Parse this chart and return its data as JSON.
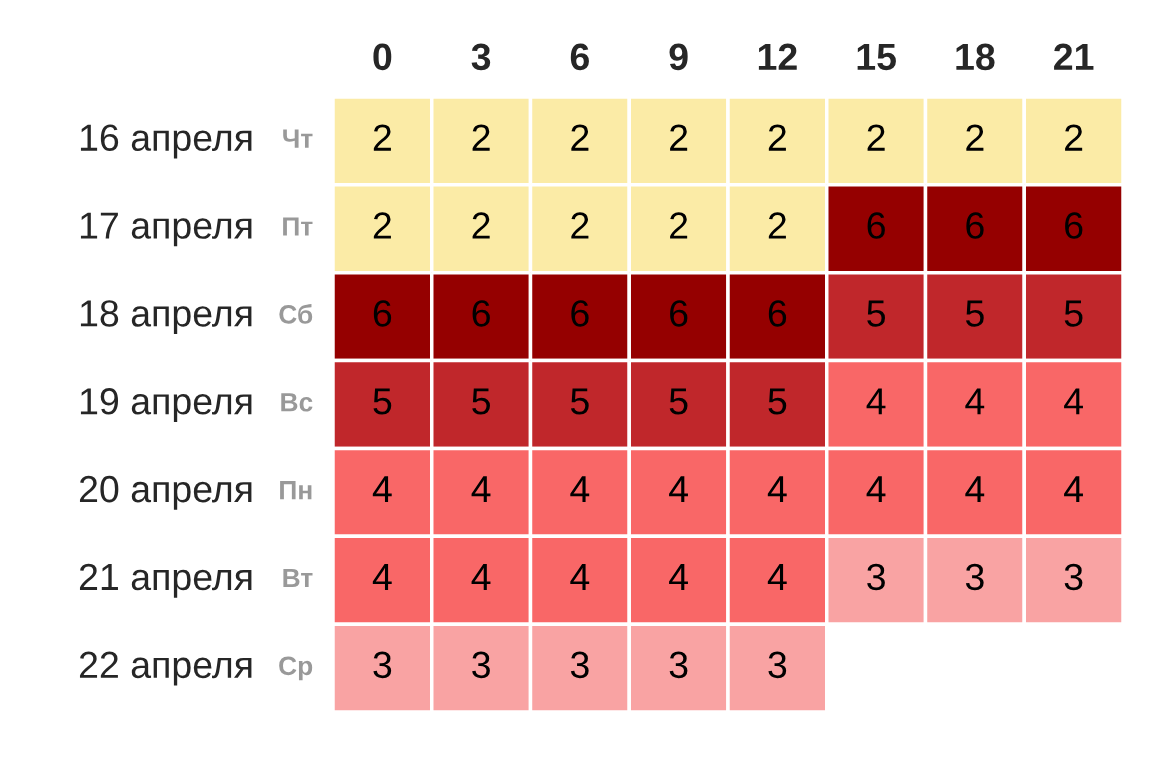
{
  "chart_data": {
    "type": "heatmap",
    "categories": [
      "0",
      "3",
      "6",
      "9",
      "12",
      "15",
      "18",
      "21"
    ],
    "y_categories": [
      "16 апреля",
      "17 апреля",
      "18 апреля",
      "19 апреля",
      "20 апреля",
      "21 апреля",
      "22 апреля"
    ],
    "y2_categories": [
      "Чт",
      "Пт",
      "Сб",
      "Вс",
      "Пн",
      "Вт",
      "Ср"
    ],
    "cells": [
      [
        2,
        2,
        2,
        2,
        2,
        2,
        2,
        2
      ],
      [
        2,
        2,
        2,
        2,
        2,
        6,
        6,
        6
      ],
      [
        6,
        6,
        6,
        6,
        6,
        5,
        5,
        5
      ],
      [
        5,
        5,
        5,
        5,
        5,
        4,
        4,
        4
      ],
      [
        4,
        4,
        4,
        4,
        4,
        4,
        4,
        4
      ],
      [
        4,
        4,
        4,
        4,
        4,
        3,
        3,
        3
      ],
      [
        3,
        3,
        3,
        3,
        3,
        null,
        null,
        null
      ]
    ],
    "colors": [
      "#fbeba6",
      "#f9a3a3",
      "#f96767",
      "#c0272b",
      "#950000"
    ],
    "data_labels": true
  }
}
